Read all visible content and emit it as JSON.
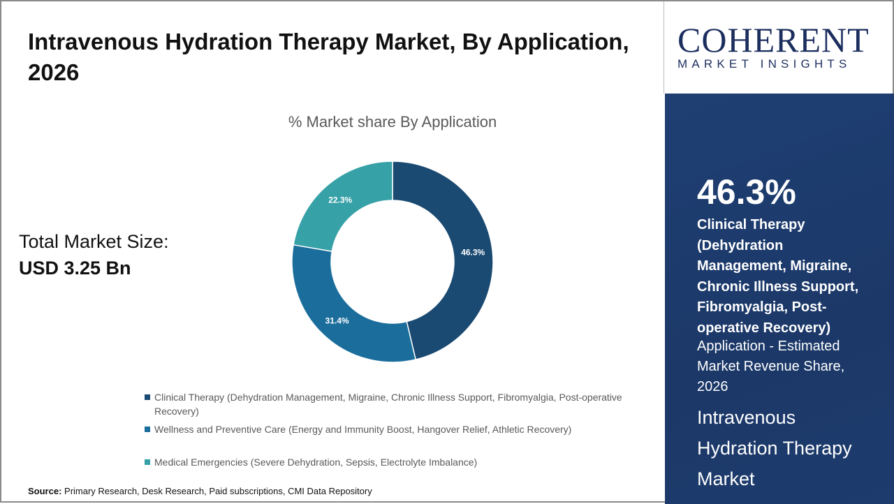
{
  "title": "Intravenous Hydration Therapy Market, By Application, 2026",
  "total": {
    "label": "Total Market Size:",
    "value": "USD 3.25 Bn"
  },
  "source": {
    "label": "Source:",
    "text": " Primary Research, Desk Research, Paid subscriptions, CMI Data Repository"
  },
  "logo": {
    "line1": "COHERENT",
    "line2": "MARKET INSIGHTS"
  },
  "highlight": {
    "value": "46.3%",
    "segment": "Clinical Therapy (Dehydration Management, Migraine, Chronic Illness Support, Fibromyalgia, Post-operative Recovery)",
    "description": "Application - Estimated Market Revenue Share, 2026",
    "market": "Intravenous Hydration Therapy Market"
  },
  "chart_data": {
    "type": "pie",
    "variant": "donut",
    "title": "% Market share By Application",
    "categories": [
      "Clinical Therapy (Dehydration Management, Migraine, Chronic Illness Support, Fibromyalgia, Post-operative Recovery)",
      "Wellness and Preventive Care (Energy and Immunity Boost, Hangover Relief, Athletic Recovery)",
      "Medical Emergencies (Severe Dehydration, Sepsis, Electrolyte Imbalance)"
    ],
    "values": [
      46.3,
      31.4,
      22.3
    ],
    "labels": [
      "46.3%",
      "31.4%",
      "22.3%"
    ],
    "colors": [
      "#1a4a72",
      "#1b6e9c",
      "#36a1a7"
    ],
    "legend": "bottom"
  }
}
